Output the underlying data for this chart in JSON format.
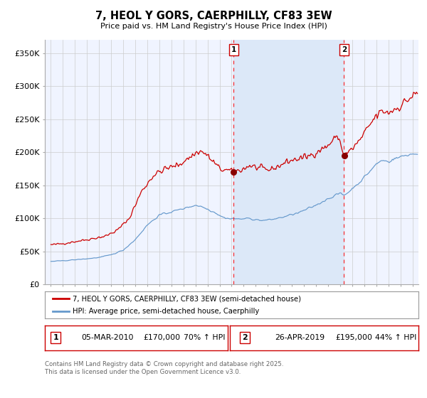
{
  "title": "7, HEOL Y GORS, CAERPHILLY, CF83 3EW",
  "subtitle": "Price paid vs. HM Land Registry's House Price Index (HPI)",
  "red_label": "7, HEOL Y GORS, CAERPHILLY, CF83 3EW (semi-detached house)",
  "blue_label": "HPI: Average price, semi-detached house, Caerphilly",
  "annotation1_date": "05-MAR-2010",
  "annotation1_price": "£170,000",
  "annotation1_hpi": "70% ↑ HPI",
  "annotation2_date": "26-APR-2019",
  "annotation2_price": "£195,000",
  "annotation2_hpi": "44% ↑ HPI",
  "vline1_x": 2010.17,
  "vline2_x": 2019.32,
  "dot1_y": 170000,
  "dot2_y": 195000,
  "ylim": [
    0,
    370000
  ],
  "xlim": [
    1994.5,
    2025.5
  ],
  "yticks": [
    0,
    50000,
    100000,
    150000,
    200000,
    250000,
    300000,
    350000
  ],
  "ytick_labels": [
    "£0",
    "£50K",
    "£100K",
    "£150K",
    "£200K",
    "£250K",
    "£300K",
    "£350K"
  ],
  "bg_color": "#f0f4ff",
  "shade_color": "#dce8f8",
  "grid_color": "#cccccc",
  "red_color": "#cc0000",
  "blue_color": "#6699cc",
  "footer": "Contains HM Land Registry data © Crown copyright and database right 2025.\nThis data is licensed under the Open Government Licence v3.0."
}
